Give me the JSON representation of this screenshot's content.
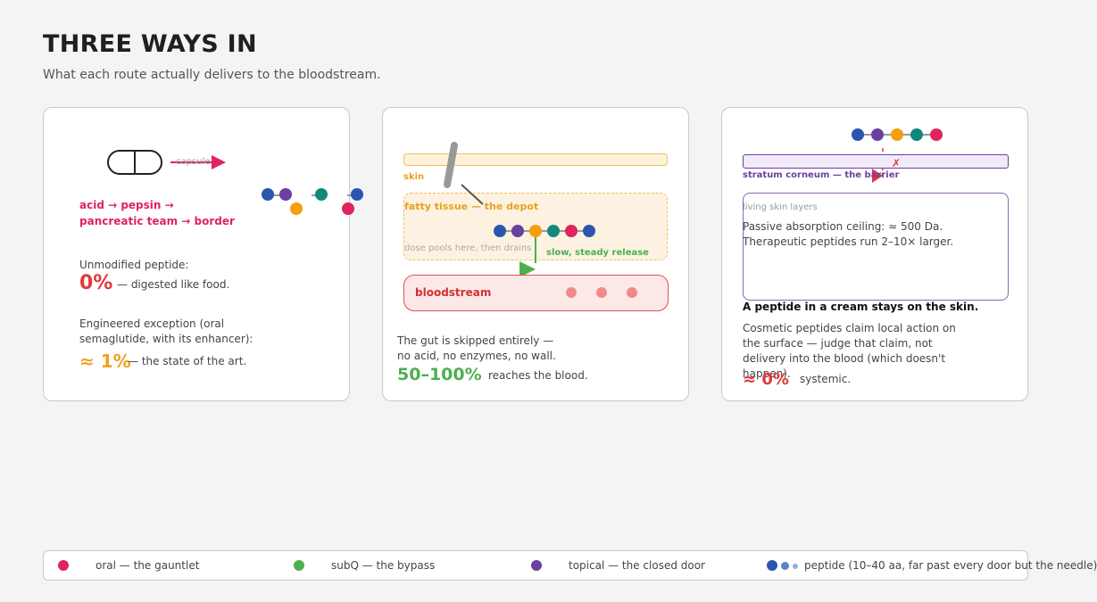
{
  "header": {
    "title": "THREE WAYS IN",
    "subtitle": "What each route actually delivers to the bloodstream."
  },
  "colors": {
    "oral": "#e0245e",
    "subq": "#4caf50",
    "topical": "#6a3fa0",
    "accent_red": "#e03a3a",
    "accent_orange": "#f0a020",
    "peptide_blue": "#2a56b0",
    "peptide_purple": "#6a3fa0",
    "peptide_orange": "#f59e0b",
    "peptide_teal": "#0f8a7a",
    "peptide_pink": "#e0245e"
  },
  "oral": {
    "capsule_label": "capsule",
    "path_text": "acid → pepsin → pancreatic team → border",
    "unmodified_label": "Unmodified peptide:",
    "unmodified_value": "0%",
    "unmodified_suffix": "— digested like food.",
    "exception_label": "Engineered exception (oral semaglutide, with its enhancer):",
    "exception_value": "≈ 1%",
    "exception_suffix": "— the state of the art."
  },
  "subq": {
    "skin_label": "skin",
    "depot_label": "fatty tissue — the depot",
    "pool_label": "dose pools here, then drains",
    "release_label": "slow, steady release",
    "blood_label": "bloodstream",
    "body": "The gut is skipped entirely — no acid, no enzymes, no wall.",
    "value": "50–100%",
    "value_suffix": "reaches the blood."
  },
  "topical": {
    "barrier_label": "stratum corneum — the barrier",
    "barrier_mark": "✗",
    "layers_label": "living skin layers",
    "ceiling_text": "Passive absorption ceiling: ≈ 500 Da. Therapeutic peptides run 2–10× larger.",
    "headline": "A peptide in a cream stays on the skin.",
    "body": "Cosmetic peptides claim local action on the surface — judge that claim, not delivery into the blood (which doesn't happen).",
    "value": "≈ 0%",
    "value_suffix": "systemic."
  },
  "legend": {
    "oral": "oral — the gauntlet",
    "subq": "subQ — the bypass",
    "topical": "topical — the closed door",
    "peptide": "peptide (10–40 aa, far past every door but the needle)"
  }
}
